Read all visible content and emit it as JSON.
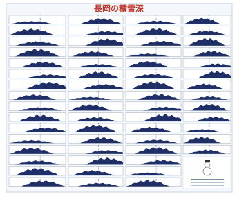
{
  "header": {
    "title": "長岡の積雪深"
  }
}
